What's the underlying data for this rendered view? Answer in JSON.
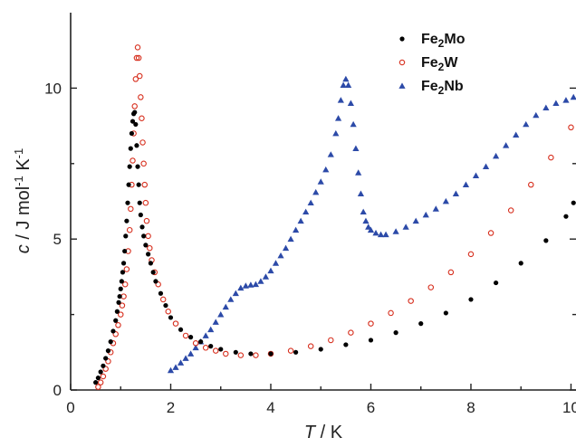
{
  "chart_data": {
    "type": "scatter",
    "title": "",
    "xlabel": {
      "var": "T",
      "unit": " / K"
    },
    "ylabel": {
      "var": "c",
      "unit_pre": " / J mol",
      "sup": "-1",
      "unit_post": " K",
      "sup2": "-1"
    },
    "xlim": [
      0,
      10.1
    ],
    "ylim": [
      0,
      12.5
    ],
    "xticks": [
      "0",
      "2",
      "4",
      "6",
      "8",
      "10"
    ],
    "yticks": [
      "0",
      "5",
      "10"
    ],
    "grid": false,
    "legend_position": "top-right",
    "series": [
      {
        "name": "Fe2Mo",
        "legend": {
          "base": "Fe",
          "sub": "2",
          "rest": "Mo"
        },
        "marker": "filled-circle",
        "color": "#000000",
        "points": [
          [
            0.5,
            0.25
          ],
          [
            0.55,
            0.4
          ],
          [
            0.6,
            0.6
          ],
          [
            0.65,
            0.8
          ],
          [
            0.7,
            1.05
          ],
          [
            0.75,
            1.3
          ],
          [
            0.8,
            1.6
          ],
          [
            0.85,
            1.95
          ],
          [
            0.9,
            2.3
          ],
          [
            0.93,
            2.6
          ],
          [
            0.96,
            2.9
          ],
          [
            0.98,
            3.1
          ],
          [
            1.0,
            3.35
          ],
          [
            1.02,
            3.6
          ],
          [
            1.04,
            3.9
          ],
          [
            1.06,
            4.2
          ],
          [
            1.08,
            4.6
          ],
          [
            1.1,
            5.1
          ],
          [
            1.12,
            5.6
          ],
          [
            1.14,
            6.2
          ],
          [
            1.16,
            6.8
          ],
          [
            1.18,
            7.4
          ],
          [
            1.2,
            8.0
          ],
          [
            1.22,
            8.5
          ],
          [
            1.24,
            8.9
          ],
          [
            1.26,
            9.15
          ],
          [
            1.28,
            9.2
          ],
          [
            1.3,
            8.8
          ],
          [
            1.32,
            8.1
          ],
          [
            1.34,
            7.4
          ],
          [
            1.36,
            6.8
          ],
          [
            1.38,
            6.2
          ],
          [
            1.4,
            5.8
          ],
          [
            1.43,
            5.4
          ],
          [
            1.46,
            5.1
          ],
          [
            1.5,
            4.8
          ],
          [
            1.55,
            4.5
          ],
          [
            1.6,
            4.2
          ],
          [
            1.65,
            3.9
          ],
          [
            1.7,
            3.6
          ],
          [
            1.8,
            3.2
          ],
          [
            1.9,
            2.8
          ],
          [
            2.0,
            2.4
          ],
          [
            2.2,
            2.0
          ],
          [
            2.4,
            1.75
          ],
          [
            2.6,
            1.6
          ],
          [
            2.8,
            1.45
          ],
          [
            3.0,
            1.35
          ],
          [
            3.3,
            1.25
          ],
          [
            3.6,
            1.2
          ],
          [
            4.0,
            1.2
          ],
          [
            4.5,
            1.25
          ],
          [
            5.0,
            1.35
          ],
          [
            5.5,
            1.5
          ],
          [
            6.0,
            1.65
          ],
          [
            6.5,
            1.9
          ],
          [
            7.0,
            2.2
          ],
          [
            7.5,
            2.55
          ],
          [
            8.0,
            3.0
          ],
          [
            8.5,
            3.55
          ],
          [
            9.0,
            4.2
          ],
          [
            9.5,
            4.95
          ],
          [
            9.9,
            5.75
          ],
          [
            10.05,
            6.2
          ]
        ]
      },
      {
        "name": "Fe2W",
        "legend": {
          "base": "Fe",
          "sub": "2",
          "rest": "W"
        },
        "marker": "open-circle",
        "color": "#d7301f",
        "points": [
          [
            0.55,
            0.1
          ],
          [
            0.6,
            0.25
          ],
          [
            0.65,
            0.45
          ],
          [
            0.7,
            0.7
          ],
          [
            0.75,
            0.95
          ],
          [
            0.8,
            1.25
          ],
          [
            0.85,
            1.55
          ],
          [
            0.9,
            1.85
          ],
          [
            0.95,
            2.15
          ],
          [
            1.0,
            2.5
          ],
          [
            1.03,
            2.8
          ],
          [
            1.06,
            3.1
          ],
          [
            1.09,
            3.5
          ],
          [
            1.12,
            4.0
          ],
          [
            1.15,
            4.6
          ],
          [
            1.18,
            5.3
          ],
          [
            1.2,
            6.0
          ],
          [
            1.22,
            6.8
          ],
          [
            1.24,
            7.6
          ],
          [
            1.26,
            8.5
          ],
          [
            1.28,
            9.4
          ],
          [
            1.3,
            10.3
          ],
          [
            1.32,
            11.0
          ],
          [
            1.34,
            11.35
          ],
          [
            1.36,
            11.0
          ],
          [
            1.38,
            10.4
          ],
          [
            1.4,
            9.7
          ],
          [
            1.42,
            9.0
          ],
          [
            1.44,
            8.2
          ],
          [
            1.46,
            7.5
          ],
          [
            1.48,
            6.8
          ],
          [
            1.5,
            6.2
          ],
          [
            1.52,
            5.6
          ],
          [
            1.55,
            5.1
          ],
          [
            1.58,
            4.7
          ],
          [
            1.62,
            4.3
          ],
          [
            1.68,
            3.9
          ],
          [
            1.75,
            3.5
          ],
          [
            1.85,
            3.0
          ],
          [
            1.95,
            2.6
          ],
          [
            2.1,
            2.2
          ],
          [
            2.3,
            1.8
          ],
          [
            2.5,
            1.55
          ],
          [
            2.7,
            1.4
          ],
          [
            2.9,
            1.3
          ],
          [
            3.1,
            1.2
          ],
          [
            3.4,
            1.15
          ],
          [
            3.7,
            1.15
          ],
          [
            4.0,
            1.2
          ],
          [
            4.4,
            1.3
          ],
          [
            4.8,
            1.45
          ],
          [
            5.2,
            1.65
          ],
          [
            5.6,
            1.9
          ],
          [
            6.0,
            2.2
          ],
          [
            6.4,
            2.55
          ],
          [
            6.8,
            2.95
          ],
          [
            7.2,
            3.4
          ],
          [
            7.6,
            3.9
          ],
          [
            8.0,
            4.5
          ],
          [
            8.4,
            5.2
          ],
          [
            8.8,
            5.95
          ],
          [
            9.2,
            6.8
          ],
          [
            9.6,
            7.7
          ],
          [
            10.0,
            8.7
          ]
        ]
      },
      {
        "name": "Fe2Nb",
        "legend": {
          "base": "Fe",
          "sub": "2",
          "rest": "Nb"
        },
        "marker": "filled-triangle",
        "color": "#2c4aa8",
        "points": [
          [
            2.0,
            0.65
          ],
          [
            2.1,
            0.75
          ],
          [
            2.2,
            0.9
          ],
          [
            2.3,
            1.05
          ],
          [
            2.4,
            1.2
          ],
          [
            2.5,
            1.4
          ],
          [
            2.6,
            1.6
          ],
          [
            2.7,
            1.8
          ],
          [
            2.8,
            2.0
          ],
          [
            2.9,
            2.25
          ],
          [
            3.0,
            2.5
          ],
          [
            3.1,
            2.75
          ],
          [
            3.2,
            3.0
          ],
          [
            3.3,
            3.2
          ],
          [
            3.4,
            3.38
          ],
          [
            3.5,
            3.45
          ],
          [
            3.6,
            3.48
          ],
          [
            3.7,
            3.5
          ],
          [
            3.8,
            3.6
          ],
          [
            3.9,
            3.75
          ],
          [
            4.0,
            3.95
          ],
          [
            4.1,
            4.2
          ],
          [
            4.2,
            4.45
          ],
          [
            4.3,
            4.7
          ],
          [
            4.4,
            5.0
          ],
          [
            4.5,
            5.3
          ],
          [
            4.6,
            5.6
          ],
          [
            4.7,
            5.9
          ],
          [
            4.8,
            6.2
          ],
          [
            4.9,
            6.55
          ],
          [
            5.0,
            6.9
          ],
          [
            5.1,
            7.3
          ],
          [
            5.2,
            7.8
          ],
          [
            5.3,
            8.5
          ],
          [
            5.35,
            9.0
          ],
          [
            5.4,
            9.6
          ],
          [
            5.45,
            10.1
          ],
          [
            5.5,
            10.3
          ],
          [
            5.55,
            10.1
          ],
          [
            5.6,
            9.5
          ],
          [
            5.65,
            8.8
          ],
          [
            5.7,
            8.0
          ],
          [
            5.75,
            7.2
          ],
          [
            5.8,
            6.5
          ],
          [
            5.85,
            5.9
          ],
          [
            5.9,
            5.6
          ],
          [
            5.95,
            5.4
          ],
          [
            6.0,
            5.3
          ],
          [
            6.1,
            5.2
          ],
          [
            6.2,
            5.15
          ],
          [
            6.3,
            5.15
          ],
          [
            6.5,
            5.25
          ],
          [
            6.7,
            5.4
          ],
          [
            6.9,
            5.6
          ],
          [
            7.1,
            5.8
          ],
          [
            7.3,
            6.0
          ],
          [
            7.5,
            6.25
          ],
          [
            7.7,
            6.5
          ],
          [
            7.9,
            6.8
          ],
          [
            8.1,
            7.1
          ],
          [
            8.3,
            7.4
          ],
          [
            8.5,
            7.75
          ],
          [
            8.7,
            8.1
          ],
          [
            8.9,
            8.45
          ],
          [
            9.1,
            8.8
          ],
          [
            9.3,
            9.1
          ],
          [
            9.5,
            9.35
          ],
          [
            9.7,
            9.5
          ],
          [
            9.9,
            9.6
          ],
          [
            10.05,
            9.7
          ]
        ]
      }
    ]
  }
}
